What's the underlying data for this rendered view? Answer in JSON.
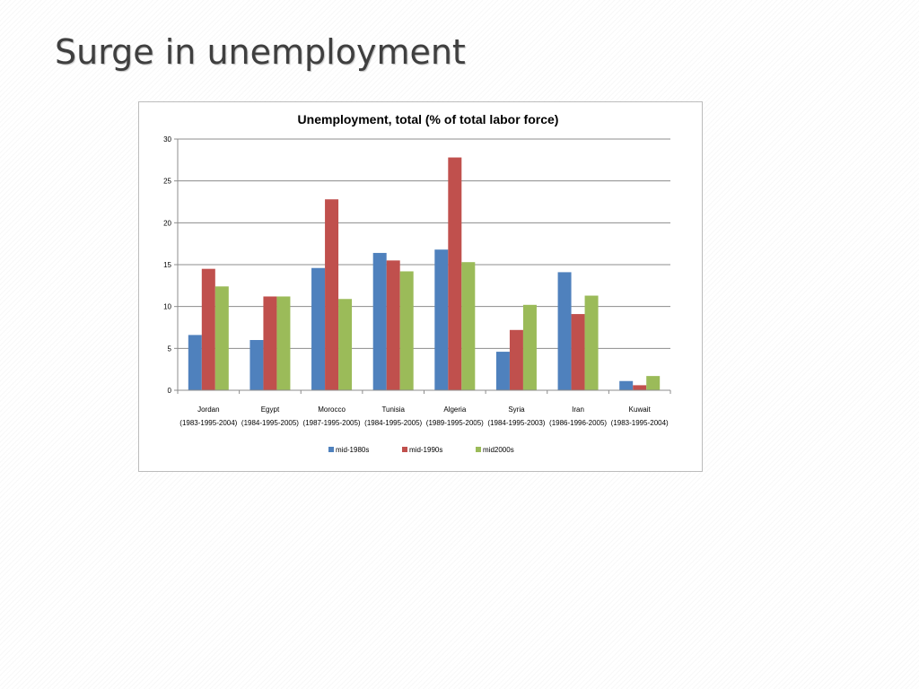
{
  "slide": {
    "title": "Surge in unemployment"
  },
  "chart_data": {
    "type": "bar",
    "title": "Unemployment, total (% of total labor force)",
    "xlabel": "",
    "ylabel": "",
    "ylim": [
      0,
      30
    ],
    "yticks": [
      0,
      5,
      10,
      15,
      20,
      25,
      30
    ],
    "grid": true,
    "legend_position": "bottom",
    "categories": [
      {
        "name": "Jordan",
        "years": "(1983-1995-2004)"
      },
      {
        "name": "Egypt",
        "years": "(1984-1995-2005)"
      },
      {
        "name": "Morocco",
        "years": "(1987-1995-2005)"
      },
      {
        "name": "Tunisia",
        "years": "(1984-1995-2005)"
      },
      {
        "name": "Algeria",
        "years": "(1989-1995-2005)"
      },
      {
        "name": "Syria",
        "years": "(1984-1995-2003)"
      },
      {
        "name": "Iran",
        "years": "(1986-1996-2005)"
      },
      {
        "name": "Kuwait",
        "years": "(1983-1995-2004)"
      }
    ],
    "series": [
      {
        "name": "mid-1980s",
        "color": "#4f81bd",
        "values": [
          6.6,
          6.0,
          14.6,
          16.4,
          16.8,
          4.6,
          14.1,
          1.1
        ]
      },
      {
        "name": "mid-1990s",
        "color": "#c0504d",
        "values": [
          14.5,
          11.2,
          22.8,
          15.5,
          27.8,
          7.2,
          9.1,
          0.6
        ]
      },
      {
        "name": "mid2000s",
        "color": "#9bbb59",
        "values": [
          12.4,
          11.2,
          10.9,
          14.2,
          15.3,
          10.2,
          11.3,
          1.7
        ]
      }
    ]
  }
}
